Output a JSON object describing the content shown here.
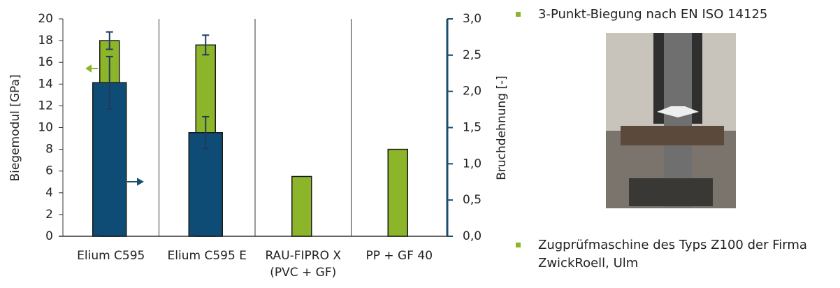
{
  "chart_data": {
    "type": "bar",
    "categories": [
      "Elium C595",
      "Elium C595 E",
      "RAU-FIPRO X\n(PVC + GF)",
      "PP + GF 40"
    ],
    "y_label": "Biegemodul [GPa]",
    "y2_label": "Bruchdehnung [-]",
    "ylim": [
      0,
      20
    ],
    "yticks": [
      0,
      2,
      4,
      6,
      8,
      10,
      12,
      14,
      16,
      18,
      20
    ],
    "y2lim": [
      0,
      3
    ],
    "y2ticks": [
      {
        "value": 0,
        "label": "0,0"
      },
      {
        "value": 0.5,
        "label": "0,5"
      },
      {
        "value": 1,
        "label": "1,0"
      },
      {
        "value": 1.5,
        "label": "1,5"
      },
      {
        "value": 2,
        "label": "2,0"
      },
      {
        "value": 2.5,
        "label": "2,5"
      },
      {
        "value": 3,
        "label": "3,0"
      }
    ],
    "series": [
      {
        "color": "#8db52a",
        "values": [
          18.0,
          17.6,
          5.5,
          8.0
        ],
        "errors": [
          0.8,
          0.9,
          null,
          null
        ]
      },
      {
        "color": "#0f4c75",
        "axis": "y2",
        "values": [
          2.12,
          1.43,
          null,
          null
        ],
        "errors": [
          0.36,
          0.22,
          null,
          null
        ]
      }
    ]
  },
  "bullets": [
    "3-Punkt-Biegung nach EN ISO 14125",
    "Zugprüfmaschine des Typs Z100 der Firma\nZwickRoell, Ulm"
  ]
}
